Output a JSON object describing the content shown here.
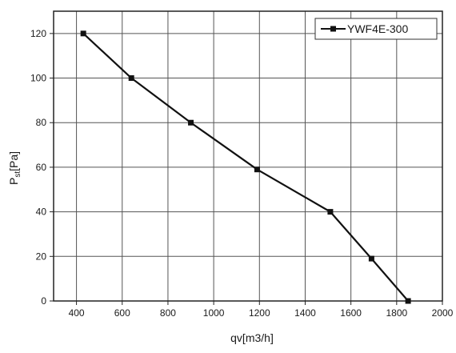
{
  "chart_data": {
    "type": "line",
    "title": "",
    "xlabel": "qv[m3/h]",
    "ylabel_main": "P",
    "ylabel_sub": "st",
    "ylabel_suffix": "[Pa]",
    "xlim": [
      300,
      2000
    ],
    "ylim": [
      0,
      130
    ],
    "xticks": [
      400,
      600,
      800,
      1000,
      1200,
      1400,
      1600,
      1800,
      2000
    ],
    "yticks": [
      0,
      20,
      40,
      60,
      80,
      100,
      120
    ],
    "grid": true,
    "legend_position": "top-right",
    "series": [
      {
        "name": "YWF4E-300",
        "color": "#111111",
        "marker": "square",
        "points": [
          {
            "x": 430,
            "y": 120
          },
          {
            "x": 640,
            "y": 100
          },
          {
            "x": 900,
            "y": 80
          },
          {
            "x": 1190,
            "y": 59
          },
          {
            "x": 1510,
            "y": 40
          },
          {
            "x": 1690,
            "y": 19
          },
          {
            "x": 1850,
            "y": 0
          }
        ]
      }
    ]
  }
}
